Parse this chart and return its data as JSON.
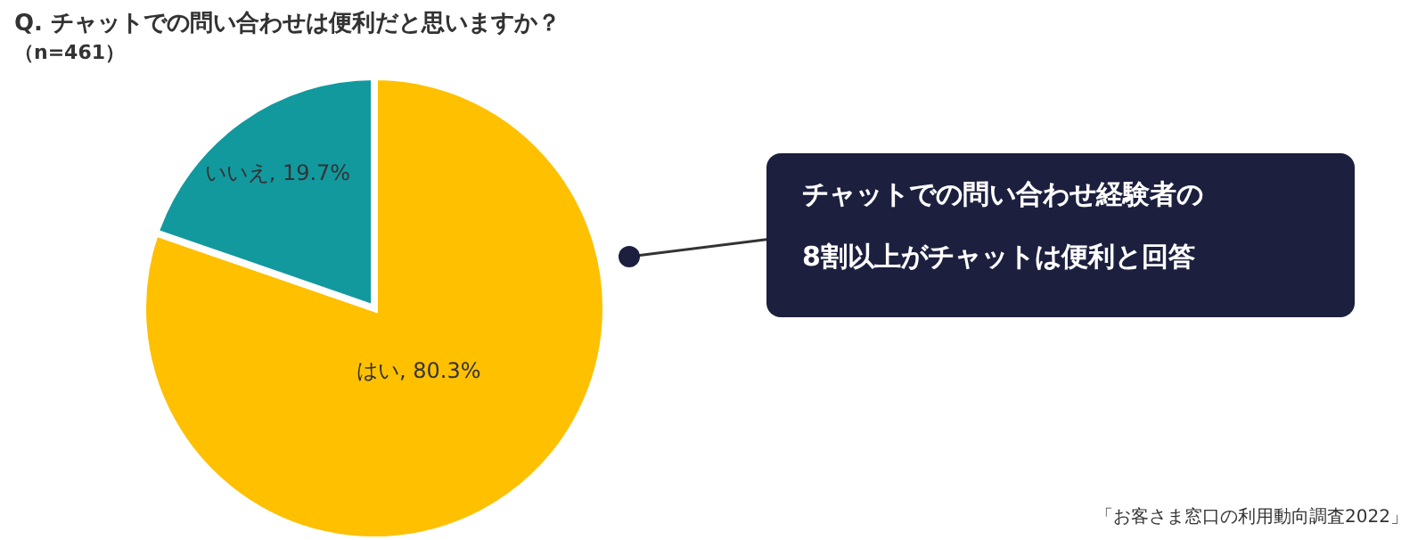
{
  "chart_data": {
    "type": "pie",
    "title": "Q. チャットでの問い合わせは便利だと思いますか？",
    "subtitle": "（n=461）",
    "categories": [
      "はい",
      "いいえ"
    ],
    "values": [
      80.3,
      19.7
    ],
    "colors": [
      "#ffc000",
      "#12999e"
    ],
    "value_labels": [
      ", 80.3%",
      ", 19.7%"
    ],
    "legend": false,
    "annotations": [
      "チャットでの問い合わせ経験者の",
      "8割以上がチャットは便利と回答",
      "「お客さま窓口の利用動向調査2022」"
    ]
  }
}
